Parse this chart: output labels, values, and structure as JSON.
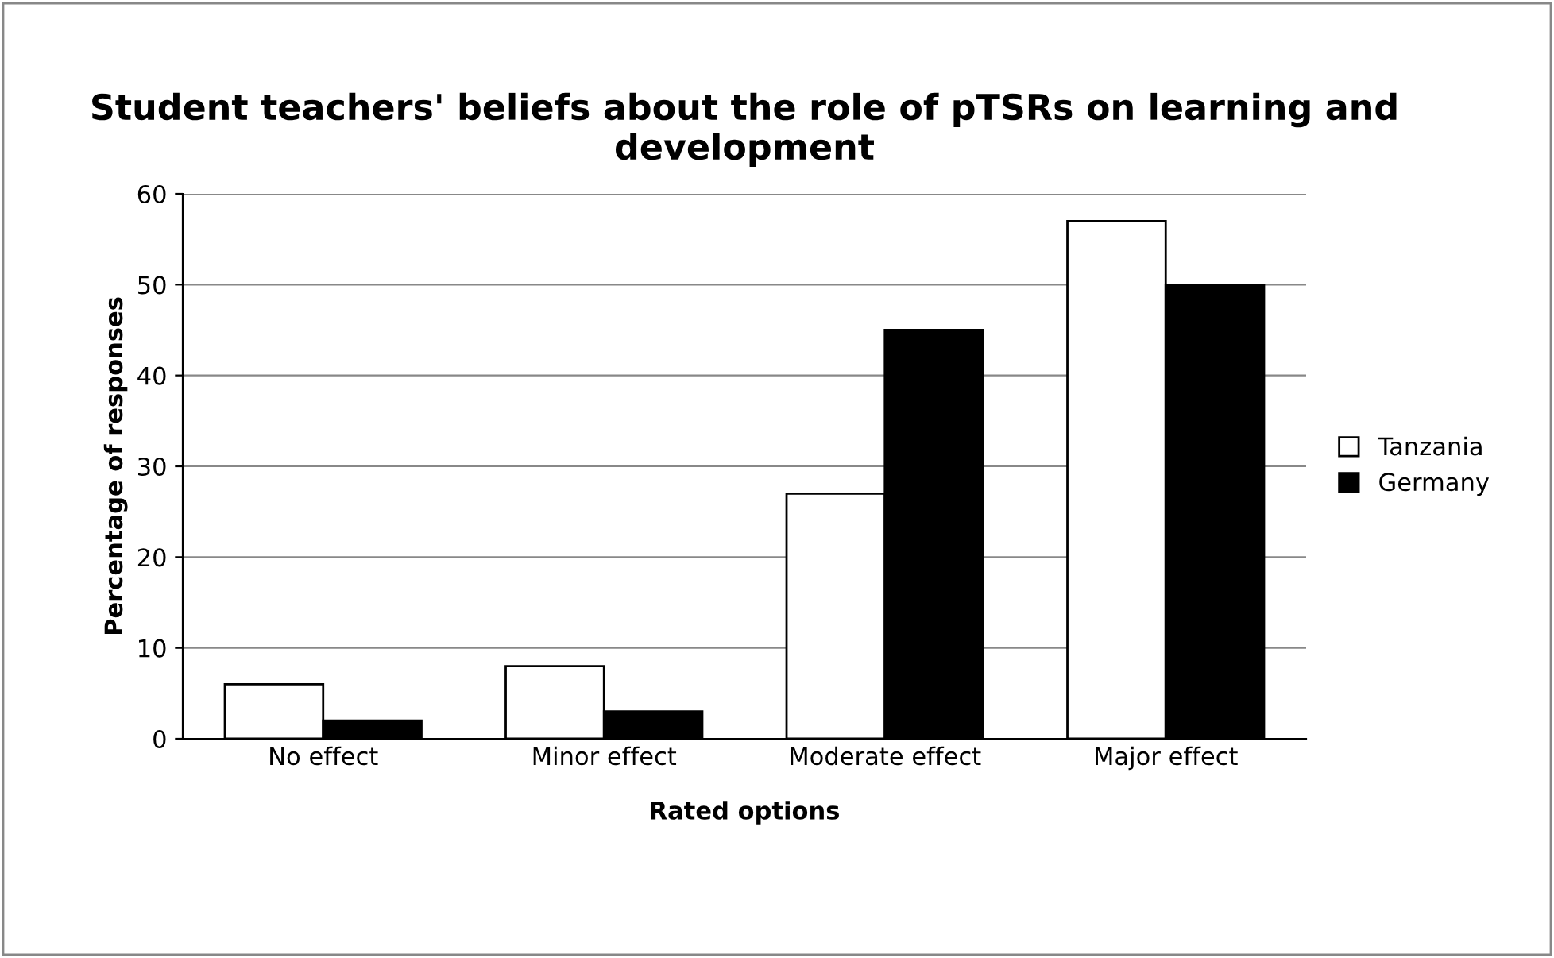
{
  "chart_data": {
    "type": "bar",
    "title": "Student teachers' beliefs about the role of pTSRs on learning and development",
    "xlabel": "Rated options",
    "ylabel": "Percentage of responses",
    "categories": [
      "No effect",
      "Minor effect",
      "Moderate effect",
      "Major effect"
    ],
    "series": [
      {
        "name": "Tanzania",
        "color": "#ffffff",
        "values": [
          6,
          8,
          27,
          57
        ]
      },
      {
        "name": "Germany",
        "color": "#000000",
        "values": [
          2,
          3,
          45,
          50
        ]
      }
    ],
    "ylim": [
      0,
      60
    ],
    "yticks": [
      0,
      10,
      20,
      30,
      40,
      50,
      60
    ],
    "grid": "y",
    "legend": "right"
  }
}
